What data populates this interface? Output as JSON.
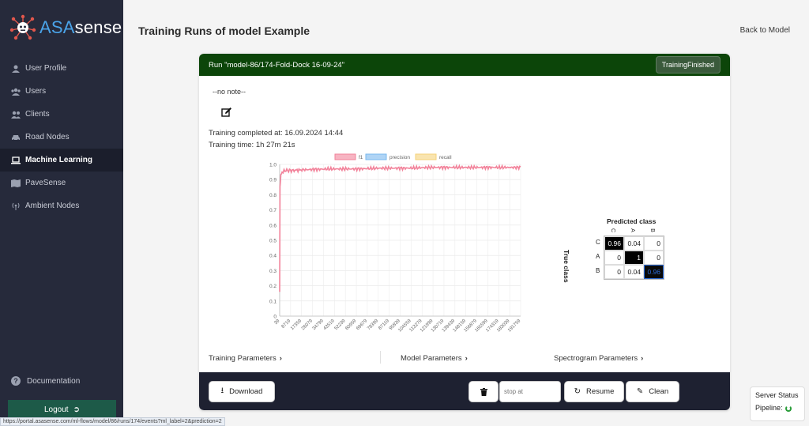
{
  "brand": {
    "part1": "ASA",
    "part2": "sense"
  },
  "sidebar": {
    "items": [
      {
        "label": "User Profile",
        "icon": "user-icon"
      },
      {
        "label": "Users",
        "icon": "users-icon"
      },
      {
        "label": "Clients",
        "icon": "clients-icon"
      },
      {
        "label": "Road Nodes",
        "icon": "car-icon"
      },
      {
        "label": "Machine Learning",
        "icon": "laptop-icon",
        "active": true
      },
      {
        "label": "PaveSense",
        "icon": "map-icon"
      },
      {
        "label": "Ambient Nodes",
        "icon": "broadcast-icon"
      }
    ],
    "documentation": "Documentation",
    "logout": "Logout"
  },
  "header": {
    "title": "Training Runs of model Example",
    "back": "Back to Model"
  },
  "run": {
    "title": "Run \"model-86/174-Fold-Dock 16-09-24\"",
    "status": "TrainingFinished",
    "note": "--no note--",
    "completed": "Training completed at: 16.09.2024 14:44",
    "time": "Training time: 1h 27m 21s"
  },
  "chart_data": {
    "type": "line",
    "legend": [
      "f1",
      "precision",
      "recall"
    ],
    "legend_placement": "top",
    "grid": true,
    "ylim": [
      0,
      1
    ],
    "yticks": [
      "0",
      "0.1",
      "0.2",
      "0.3",
      "0.4",
      "0.5",
      "0.6",
      "0.7",
      "0.8",
      "0.9",
      "1.0"
    ],
    "xticks": [
      "39",
      "8719",
      "17359",
      "26079",
      "34799",
      "43519",
      "52239",
      "60959",
      "69679",
      "78399",
      "87119",
      "95839",
      "104559",
      "113279",
      "121999",
      "130719",
      "139439",
      "148159",
      "156879",
      "165599",
      "174319",
      "183039",
      "191759"
    ],
    "series": [
      {
        "name": "f1",
        "color": "#f2829a",
        "x": [
          39,
          300,
          1000,
          2000,
          5000,
          10000,
          20000,
          40000,
          60000,
          80000,
          100000,
          120000,
          140000,
          160000,
          180000,
          191759
        ],
        "values": [
          0.16,
          0.85,
          0.93,
          0.95,
          0.96,
          0.96,
          0.965,
          0.97,
          0.97,
          0.975,
          0.975,
          0.98,
          0.98,
          0.98,
          0.98,
          0.98
        ]
      },
      {
        "name": "precision",
        "color": "#7ab8ee",
        "x": [],
        "values": []
      },
      {
        "name": "recall",
        "color": "#f5d27a",
        "x": [],
        "values": []
      }
    ]
  },
  "confusion": {
    "title": "Predicted class",
    "ylabel": "True class",
    "cols": [
      "C",
      "A",
      "B"
    ],
    "rows": [
      "C",
      "A",
      "B"
    ],
    "values": [
      [
        "0.96",
        "0.04",
        "0"
      ],
      [
        "0",
        "1",
        "0"
      ],
      [
        "0",
        "0.04",
        "0.96"
      ]
    ]
  },
  "params": {
    "training": "Training Parameters",
    "model": "Model Parameters",
    "spectrogram": "Spectrogram Parameters"
  },
  "footer": {
    "download": "Download",
    "stop_placeholder": "stop at",
    "resume": "Resume",
    "clean": "Clean"
  },
  "server": {
    "status": "Server Status",
    "pipeline": "Pipeline:"
  },
  "url": "https://portal.asasense.com/ml-flows/model/86/runs/174/events?ml_label=2&prediction=2"
}
